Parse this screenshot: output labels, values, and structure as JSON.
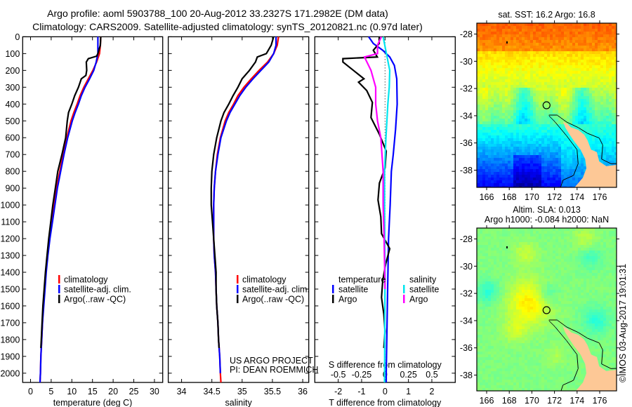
{
  "title": {
    "line1": "Argo profile: aoml 5903788_100 20-Aug-2012 33.2327S 171.2982E (DM data)",
    "line2": "Climatology: CARS2009. Satellite-adjusted climatology: synTS_20120821.nc (0.97d later)"
  },
  "annotation": {
    "line1": "US ARGO PROJECT",
    "line2": "PI: DEAN ROEMMICH"
  },
  "timestamp": "©IMOS 03-Aug-2017 19:01:31",
  "colors": {
    "climatology": "#ff0000",
    "satellite": "#0000ff",
    "argo": "#000000",
    "sal_satellite": "#00e5ee",
    "sal_argo": "#ff00ff",
    "land": "#fdc896"
  },
  "chart_data": [
    {
      "type": "line",
      "xlabel": "temperature (deg C)",
      "ylabel": "",
      "xlim": [
        -1.9,
        32.0
      ],
      "ylim": [
        0,
        2055
      ],
      "xticks": [
        "0",
        "5",
        "10",
        "15",
        "20",
        "25",
        "30"
      ],
      "yticks": [
        "0",
        "100",
        "200",
        "300",
        "400",
        "500",
        "600",
        "700",
        "800",
        "900",
        "1000",
        "1100",
        "1200",
        "1300",
        "1400",
        "1500",
        "1600",
        "1700",
        "1800",
        "1900",
        "2000"
      ],
      "legend": [
        "climatology",
        "satellite-adj. clim.",
        "Argo(..raw -QC)"
      ],
      "series": [
        {
          "name": "climatology",
          "color": "#ff0000",
          "depth": [
            0,
            50,
            100,
            150,
            200,
            250,
            300,
            350,
            400,
            450,
            500,
            600,
            700,
            800,
            900,
            1000,
            1100,
            1200,
            1300,
            1400,
            1500,
            1600,
            1700,
            1800,
            1900,
            2000,
            2055
          ],
          "values": [
            17.0,
            16.9,
            16.7,
            16.0,
            15.1,
            14.0,
            12.9,
            12.0,
            11.3,
            10.5,
            9.8,
            8.8,
            7.9,
            7.1,
            6.3,
            5.7,
            5.1,
            4.6,
            4.1,
            3.7,
            3.4,
            3.1,
            2.9,
            2.7,
            2.5,
            2.4,
            2.3
          ]
        },
        {
          "name": "satellite-adj. clim.",
          "color": "#0000ff",
          "depth": [
            0,
            50,
            100,
            150,
            200,
            250,
            300,
            350,
            400,
            450,
            500,
            600,
            700,
            800,
            900,
            1000,
            1100,
            1200,
            1300,
            1400,
            1500,
            1600,
            1700,
            1800,
            1900,
            2000,
            2055
          ],
          "values": [
            16.3,
            16.3,
            16.3,
            15.9,
            15.3,
            14.3,
            13.2,
            12.3,
            11.6,
            10.8,
            10.1,
            9.0,
            8.1,
            7.3,
            6.5,
            5.9,
            5.3,
            4.7,
            4.2,
            3.8,
            3.5,
            3.2,
            2.9,
            2.7,
            2.5,
            2.4,
            2.3
          ]
        },
        {
          "name": "Argo(..raw -QC)",
          "color": "#000000",
          "depth": [
            0,
            50,
            100,
            115,
            130,
            150,
            200,
            230,
            250,
            300,
            350,
            400,
            450,
            500,
            600,
            700,
            800,
            900,
            1000,
            1100,
            1200,
            1300,
            1400,
            1500,
            1600,
            1700,
            1800,
            1850
          ],
          "values": [
            17.0,
            16.9,
            16.3,
            16.0,
            14.0,
            13.5,
            13.6,
            13.4,
            12.3,
            11.6,
            10.7,
            10.0,
            9.2,
            8.9,
            8.5,
            7.6,
            6.6,
            6.0,
            5.4,
            4.9,
            4.4,
            4.0,
            3.6,
            3.3,
            3.0,
            2.8,
            2.6,
            2.5
          ]
        }
      ]
    },
    {
      "type": "line",
      "xlabel": "salinity",
      "xlim": [
        33.78,
        36.1
      ],
      "ylim": [
        0,
        2055
      ],
      "xticks": [
        "34",
        "34.5",
        "35",
        "35.5",
        "36"
      ],
      "legend": [
        "climatology",
        "satellite-adj. clim.",
        "Argo(..raw -QC)"
      ],
      "series": [
        {
          "name": "climatology",
          "color": "#ff0000",
          "depth": [
            0,
            50,
            100,
            150,
            200,
            250,
            300,
            350,
            400,
            450,
            500,
            600,
            700,
            800,
            900,
            1000,
            1100,
            1200,
            1300,
            1400,
            1500,
            1600,
            1700,
            1800,
            1900,
            2000,
            2055
          ],
          "values": [
            35.6,
            35.58,
            35.52,
            35.42,
            35.28,
            35.15,
            35.03,
            34.93,
            34.86,
            34.78,
            34.72,
            34.64,
            34.59,
            34.56,
            34.54,
            34.53,
            34.53,
            34.53,
            34.54,
            34.56,
            34.57,
            34.58,
            34.6,
            34.61,
            34.63,
            34.64,
            34.65
          ]
        },
        {
          "name": "satellite-adj. clim.",
          "color": "#0000ff",
          "depth": [
            0,
            50,
            100,
            150,
            200,
            250,
            300,
            350,
            400,
            450,
            500,
            600,
            700,
            800,
            900,
            1000,
            1100,
            1200,
            1300,
            1400,
            1500,
            1600,
            1700,
            1800,
            1900,
            2000
          ],
          "values": [
            35.56,
            35.56,
            35.52,
            35.44,
            35.31,
            35.18,
            35.06,
            34.96,
            34.88,
            34.8,
            34.74,
            34.65,
            34.6,
            34.56,
            34.54,
            34.53,
            34.53,
            34.53,
            34.54,
            34.56,
            34.57,
            34.58,
            34.6,
            34.61,
            34.63,
            34.64
          ]
        },
        {
          "name": "Argo(..raw -QC)",
          "color": "#000000",
          "depth": [
            0,
            50,
            100,
            120,
            150,
            200,
            250,
            300,
            350,
            400,
            450,
            500,
            600,
            700,
            800,
            900,
            1000,
            1100,
            1200,
            1300,
            1400,
            1500,
            1600,
            1700,
            1800,
            1850
          ],
          "values": [
            35.52,
            35.48,
            35.4,
            35.25,
            35.22,
            35.12,
            35.0,
            34.93,
            34.85,
            34.78,
            34.7,
            34.65,
            34.58,
            34.53,
            34.5,
            34.49,
            34.49,
            34.51,
            34.53,
            34.55,
            34.57,
            34.57,
            34.58,
            34.6,
            34.61,
            34.62
          ]
        }
      ]
    },
    {
      "type": "line",
      "xlabel": "T difference from climatology",
      "xlabel2": "S difference from climatology",
      "xlim": [
        -3,
        3
      ],
      "xlim2": [
        -0.75,
        0.75
      ],
      "ylim": [
        0,
        2055
      ],
      "xticks": [
        "-2",
        "-1",
        "0",
        "1",
        "2"
      ],
      "xticks2": [
        "-0.5",
        "-0.25",
        "0",
        "0.25",
        "0.5"
      ],
      "legend_groups": [
        {
          "title": "temperature",
          "items": [
            "satellite",
            "Argo"
          ]
        },
        {
          "title": "salinity",
          "items": [
            "satellite",
            "Argo"
          ]
        }
      ],
      "series": [
        {
          "name": "temperature satellite",
          "axis": "T",
          "color": "#0000ff",
          "depth": [
            0,
            40,
            80,
            120,
            170,
            250,
            400,
            550,
            700,
            800,
            1000,
            1200,
            1600,
            2000,
            2055
          ],
          "values": [
            -0.7,
            -0.5,
            -0.1,
            0.2,
            0.4,
            0.5,
            0.52,
            0.45,
            0.35,
            0.27,
            0.22,
            0.15,
            0.1,
            0.05,
            0.05
          ]
        },
        {
          "name": "temperature Argo",
          "axis": "T",
          "color": "#000000",
          "depth": [
            0,
            40,
            80,
            120,
            130,
            150,
            200,
            250,
            270,
            320,
            390,
            480,
            580,
            680,
            780,
            870,
            970,
            1070,
            1170,
            1260,
            1350,
            1450,
            1550,
            1650,
            1750,
            1850
          ],
          "values": [
            -0.25,
            -0.25,
            -0.5,
            -0.33,
            -1.8,
            -1.8,
            -1.35,
            -0.9,
            -1.13,
            -0.78,
            -0.54,
            -0.6,
            -0.24,
            0.05,
            0.0,
            -0.24,
            -0.3,
            -0.18,
            -0.15,
            0.2,
            0.03,
            -0.1,
            -0.15,
            -0.05,
            0.0,
            -0.05
          ]
        },
        {
          "name": "salinity satellite",
          "axis": "S",
          "color": "#00e5ee",
          "depth": [
            0,
            100,
            200,
            300,
            400,
            600,
            800,
            1000,
            1400,
            2055
          ],
          "values": [
            -0.02,
            0.015,
            0.05,
            0.045,
            0.03,
            0.01,
            -0.005,
            -0.005,
            0.0,
            -0.005
          ]
        },
        {
          "name": "salinity Argo",
          "axis": "S",
          "color": "#ff00ff",
          "depth": [
            0,
            50,
            100,
            120,
            200,
            300,
            400,
            500,
            600,
            800,
            1000,
            1200,
            1500
          ],
          "values": [
            -0.04,
            -0.08,
            -0.08,
            -0.22,
            -0.15,
            -0.1,
            -0.1,
            -0.08,
            -0.045,
            -0.02,
            -0.02,
            -0.01,
            0.0
          ]
        }
      ]
    }
  ],
  "maps": [
    {
      "title_lines": [
        "sat. SST: 16.2 Argo: 16.8"
      ],
      "field": "SST",
      "xticks": [
        "166",
        "168",
        "170",
        "172",
        "174",
        "176"
      ],
      "yticks": [
        "-28",
        "-30",
        "-32",
        "-34",
        "-36",
        "-38"
      ],
      "float_position": {
        "lon": 171.2982,
        "lat": -33.2327
      }
    },
    {
      "title_lines": [
        "Altim. SLA: 0.013",
        "Argo h1000: -0.084 h2000: NaN"
      ],
      "field": "SLA",
      "xticks": [
        "166",
        "168",
        "170",
        "172",
        "174",
        "176"
      ],
      "yticks": [
        "-28",
        "-30",
        "-32",
        "-34",
        "-36",
        "-38"
      ],
      "float_position": {
        "lon": 171.2982,
        "lat": -33.2327
      }
    }
  ]
}
